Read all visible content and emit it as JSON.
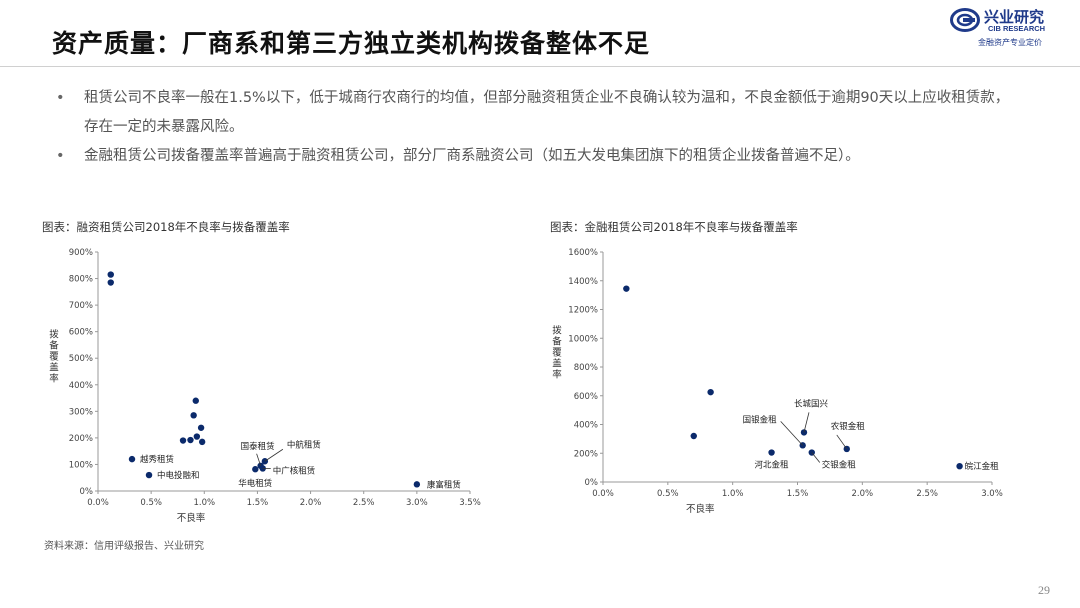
{
  "page": {
    "title": "资产质量：厂商系和第三方独立类机构拨备整体不足",
    "bullets": [
      "租赁公司不良率一般在1.5%以下，低于城商行农商行的均值，但部分融资租赁企业不良确认较为温和，不良金额低于逾期90天以上应收租赁款，存在一定的未暴露风险。",
      "金融租赁公司拨备覆盖率普遍高于融资租赁公司，部分厂商系融资公司（如五大发电集团旗下的租赁企业拨备普遍不足）。"
    ],
    "source": "资料来源：信用评级报告、兴业研究",
    "page_number": "29",
    "logo": {
      "name": "兴业研究",
      "english": "CIB RESEARCH",
      "slogan": "金融资产专业定价",
      "color": "#1f3a8a"
    },
    "point_color": "#0b2a6b"
  },
  "chart_data": [
    {
      "type": "scatter",
      "caption": "图表：融资租赁公司2018年不良率与拨备覆盖率",
      "xlabel": "不良率",
      "ylabel": "拨备覆盖率",
      "xlim": [
        0,
        3.5
      ],
      "ylim": [
        0,
        900
      ],
      "x_ticks": [
        "0.0%",
        "0.5%",
        "1.0%",
        "1.5%",
        "2.0%",
        "2.5%",
        "3.0%",
        "3.5%"
      ],
      "y_ticks": [
        "0%",
        "100%",
        "200%",
        "300%",
        "400%",
        "500%",
        "600%",
        "700%",
        "800%",
        "900%"
      ],
      "points": [
        {
          "x": 0.12,
          "y": 815,
          "label": ""
        },
        {
          "x": 0.12,
          "y": 785,
          "label": ""
        },
        {
          "x": 0.32,
          "y": 120,
          "label": "越秀租赁"
        },
        {
          "x": 0.48,
          "y": 60,
          "label": "中电投融和"
        },
        {
          "x": 0.8,
          "y": 190,
          "label": ""
        },
        {
          "x": 0.87,
          "y": 192,
          "label": ""
        },
        {
          "x": 0.9,
          "y": 285,
          "label": ""
        },
        {
          "x": 0.92,
          "y": 340,
          "label": ""
        },
        {
          "x": 0.93,
          "y": 205,
          "label": ""
        },
        {
          "x": 0.97,
          "y": 238,
          "label": ""
        },
        {
          "x": 0.98,
          "y": 185,
          "label": ""
        },
        {
          "x": 1.48,
          "y": 82,
          "label": "华电租赁"
        },
        {
          "x": 1.53,
          "y": 95,
          "label": "国泰租赁"
        },
        {
          "x": 1.57,
          "y": 112,
          "label": "中航租赁"
        },
        {
          "x": 1.55,
          "y": 85,
          "label": "中广核租赁"
        },
        {
          "x": 3.0,
          "y": 25,
          "label": "康富租赁"
        }
      ]
    },
    {
      "type": "scatter",
      "caption": "图表：金融租赁公司2018年不良率与拨备覆盖率",
      "xlabel": "不良率",
      "ylabel": "拨备覆盖率",
      "xlim": [
        0,
        3.0
      ],
      "ylim": [
        0,
        1600
      ],
      "x_ticks": [
        "0.0%",
        "0.5%",
        "1.0%",
        "1.5%",
        "2.0%",
        "2.5%",
        "3.0%"
      ],
      "y_ticks": [
        "0%",
        "200%",
        "400%",
        "600%",
        "800%",
        "1000%",
        "1200%",
        "1400%",
        "1600%"
      ],
      "points": [
        {
          "x": 0.18,
          "y": 1345,
          "label": ""
        },
        {
          "x": 0.7,
          "y": 320,
          "label": ""
        },
        {
          "x": 0.83,
          "y": 625,
          "label": ""
        },
        {
          "x": 1.3,
          "y": 205,
          "label": "河北金租"
        },
        {
          "x": 1.54,
          "y": 255,
          "label": "国银金租"
        },
        {
          "x": 1.55,
          "y": 345,
          "label": "长城国兴"
        },
        {
          "x": 1.61,
          "y": 205,
          "label": "交银金租"
        },
        {
          "x": 1.88,
          "y": 230,
          "label": "农银金租"
        },
        {
          "x": 2.75,
          "y": 110,
          "label": "皖江金租"
        }
      ]
    }
  ]
}
